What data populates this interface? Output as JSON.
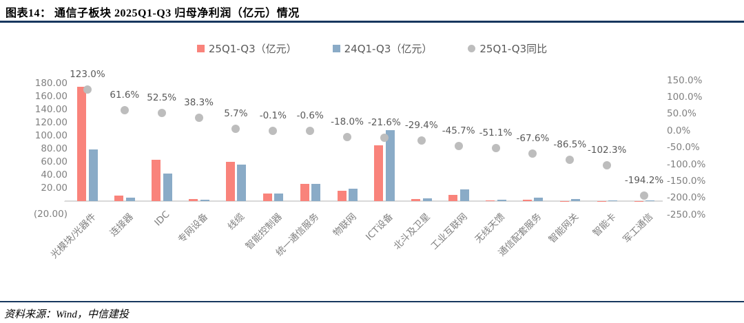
{
  "header": {
    "title": "图表14：  通信子板块 2025Q1-Q3 归母净利润（亿元）情况"
  },
  "footer": {
    "source": "资料来源：Wind，中信建投"
  },
  "colors": {
    "bar_2025": "#f9837b",
    "bar_2024": "#8aabc7",
    "dot_yoy": "#bdbdbd",
    "rule_navy": "#17375e",
    "axis_text": "#7f7f7f",
    "label_text": "#595959",
    "baseline": "#d9d9d9"
  },
  "chart_data": {
    "type": "bar",
    "title": "通信子板块 2025Q1-Q3 归母净利润（亿元）情况",
    "legend_position": "top",
    "grid": false,
    "categories": [
      "光模块/光器件",
      "连接器",
      "IDC",
      "专网设备",
      "线缆",
      "智能控制器",
      "统一通信服务",
      "物联网",
      "ICT设备",
      "北斗及卫星",
      "工业互联网",
      "无线天馈",
      "通信配套服务",
      "智能网关",
      "智能卡",
      "军工通信"
    ],
    "series": [
      {
        "name": "25Q1-Q3（亿元）",
        "type": "bar",
        "axis": "left",
        "values": [
          175.0,
          8.1,
          63.5,
          2.8,
          59.5,
          11.2,
          26.5,
          15.3,
          85.0,
          3.0,
          9.5,
          1.2,
          1.6,
          0.4,
          -0.03,
          -1.1
        ]
      },
      {
        "name": "24Q1-Q3（亿元）",
        "type": "bar",
        "axis": "left",
        "values": [
          78.5,
          5.0,
          41.6,
          2.0,
          56.3,
          11.2,
          26.7,
          18.6,
          108.4,
          4.2,
          17.5,
          2.4,
          4.9,
          2.8,
          1.3,
          1.2
        ]
      },
      {
        "name": "25Q1-Q3同比",
        "type": "scatter",
        "axis": "right",
        "values": [
          123.0,
          61.6,
          52.5,
          38.3,
          5.7,
          -0.1,
          -0.6,
          -18.0,
          -21.6,
          -29.4,
          -45.7,
          -51.1,
          -67.6,
          -86.5,
          -102.3,
          -194.2
        ],
        "labels": [
          "123.0%",
          "61.6%",
          "52.5%",
          "38.3%",
          "5.7%",
          "-0.1%",
          "-0.6%",
          "-18.0%",
          "-21.6%",
          "-29.4%",
          "-45.7%",
          "-51.1%",
          "-67.6%",
          "-86.5%",
          "-102.3%",
          "-194.2%"
        ]
      }
    ],
    "left_axis": {
      "min": -20,
      "max": 180,
      "step": 20,
      "ticks": [
        "180.00",
        "160.00",
        "140.00",
        "120.00",
        "100.00",
        "80.00",
        "60.00",
        "40.00",
        "20.00",
        "-",
        "(20.00)"
      ]
    },
    "right_axis": {
      "min": -250,
      "max": 150,
      "step": 50,
      "ticks": [
        "150.0%",
        "100.0%",
        "50.0%",
        "0.0%",
        "-50.0%",
        "-100.0%",
        "-150.0%",
        "-200.0%",
        "-250.0%"
      ]
    }
  }
}
